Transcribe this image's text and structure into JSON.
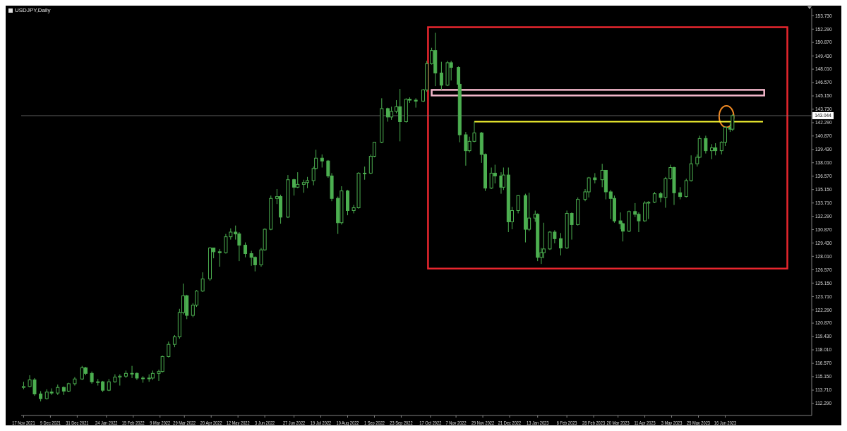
{
  "chart_data": {
    "type": "candlestick",
    "title": "USDJPY,Daily",
    "color": "#4caf50",
    "x": [
      "2021-11-17",
      "2021-11-22",
      "2021-11-26",
      "2021-12-01",
      "2021-12-06",
      "2021-12-10",
      "2021-12-15",
      "2021-12-20",
      "2021-12-24",
      "2021-12-29",
      "2022-01-04",
      "2022-01-07",
      "2022-01-12",
      "2022-01-17",
      "2022-01-21",
      "2022-01-26",
      "2022-01-31",
      "2022-02-04",
      "2022-02-09",
      "2022-02-14",
      "2022-02-18",
      "2022-02-23",
      "2022-02-28",
      "2022-03-03",
      "2022-03-08",
      "2022-03-11",
      "2022-03-16",
      "2022-03-21",
      "2022-03-25",
      "2022-03-28",
      "2022-03-31",
      "2022-04-05",
      "2022-04-08",
      "2022-04-13",
      "2022-04-19",
      "2022-04-22",
      "2022-04-27",
      "2022-05-02",
      "2022-05-06",
      "2022-05-10",
      "2022-05-13",
      "2022-05-18",
      "2022-05-23",
      "2022-05-26",
      "2022-05-31",
      "2022-06-03",
      "2022-06-08",
      "2022-06-13",
      "2022-06-16",
      "2022-06-22",
      "2022-06-27",
      "2022-06-30",
      "2022-07-05",
      "2022-07-08",
      "2022-07-13",
      "2022-07-15",
      "2022-07-20",
      "2022-07-25",
      "2022-07-28",
      "2022-08-02",
      "2022-08-05",
      "2022-08-10",
      "2022-08-15",
      "2022-08-19",
      "2022-08-24",
      "2022-08-29",
      "2022-09-01",
      "2022-09-07",
      "2022-09-12",
      "2022-09-15",
      "2022-09-19",
      "2022-09-22",
      "2022-09-27",
      "2022-09-30",
      "2022-10-05",
      "2022-10-11",
      "2022-10-14",
      "2022-10-18",
      "2022-10-21",
      "2022-10-26",
      "2022-10-31",
      "2022-11-03",
      "2022-11-09",
      "2022-11-10",
      "2022-11-15",
      "2022-11-18",
      "2022-11-22",
      "2022-11-28",
      "2022-12-01",
      "2022-12-06",
      "2022-12-09",
      "2022-12-14",
      "2022-12-16",
      "2022-12-20",
      "2022-12-23",
      "2022-12-28",
      "2023-01-03",
      "2023-01-06",
      "2023-01-11",
      "2023-01-13",
      "2023-01-16",
      "2023-01-18",
      "2023-01-23",
      "2023-01-27",
      "2023-02-01",
      "2023-02-06",
      "2023-02-10",
      "2023-02-15",
      "2023-02-21",
      "2023-02-24",
      "2023-03-01",
      "2023-03-07",
      "2023-03-10",
      "2023-03-14",
      "2023-03-17",
      "2023-03-22",
      "2023-03-24",
      "2023-03-29",
      "2023-04-03",
      "2023-04-06",
      "2023-04-11",
      "2023-04-14",
      "2023-04-19",
      "2023-04-24",
      "2023-04-28",
      "2023-05-02",
      "2023-05-05",
      "2023-05-10",
      "2023-05-15",
      "2023-05-19",
      "2023-05-24",
      "2023-05-26",
      "2023-05-31",
      "2023-06-05",
      "2023-06-08",
      "2023-06-13",
      "2023-06-16",
      "2023-06-20",
      "2023-06-22"
    ],
    "ohlc": [
      [
        114.0,
        114.6,
        113.8,
        114.1
      ],
      [
        114.1,
        115.3,
        114.0,
        114.8
      ],
      [
        114.8,
        115.0,
        113.1,
        113.3
      ],
      [
        113.3,
        113.6,
        112.5,
        112.8
      ],
      [
        112.8,
        113.8,
        112.7,
        113.5
      ],
      [
        113.5,
        113.9,
        113.2,
        113.4
      ],
      [
        113.4,
        114.3,
        113.2,
        114.0
      ],
      [
        114.0,
        114.1,
        113.2,
        113.6
      ],
      [
        113.6,
        114.5,
        113.5,
        114.4
      ],
      [
        114.4,
        115.1,
        114.2,
        114.9
      ],
      [
        114.9,
        116.3,
        114.8,
        116.1
      ],
      [
        116.1,
        116.2,
        115.3,
        115.5
      ],
      [
        115.5,
        115.7,
        114.4,
        114.6
      ],
      [
        114.6,
        114.9,
        114.2,
        114.6
      ],
      [
        114.6,
        114.7,
        113.5,
        113.7
      ],
      [
        113.7,
        114.9,
        113.6,
        114.6
      ],
      [
        114.6,
        115.4,
        114.5,
        115.1
      ],
      [
        115.1,
        115.4,
        114.2,
        115.2
      ],
      [
        115.2,
        115.8,
        115.0,
        115.5
      ],
      [
        115.5,
        116.3,
        115.0,
        115.5
      ],
      [
        115.5,
        115.6,
        114.8,
        115.0
      ],
      [
        115.0,
        115.2,
        114.5,
        115.0
      ],
      [
        115.0,
        115.4,
        114.6,
        115.0
      ],
      [
        115.0,
        115.8,
        114.8,
        115.5
      ],
      [
        115.5,
        115.9,
        114.7,
        115.7
      ],
      [
        115.7,
        117.4,
        115.6,
        117.3
      ],
      [
        117.3,
        118.9,
        117.2,
        118.6
      ],
      [
        118.6,
        119.6,
        118.3,
        119.4
      ],
      [
        119.4,
        122.4,
        119.2,
        122.0
      ],
      [
        122.0,
        125.1,
        121.8,
        123.8
      ],
      [
        123.8,
        123.9,
        121.3,
        121.7
      ],
      [
        121.7,
        123.0,
        121.5,
        122.8
      ],
      [
        122.8,
        124.4,
        122.6,
        124.3
      ],
      [
        124.3,
        126.3,
        124.2,
        125.6
      ],
      [
        125.6,
        129.0,
        125.4,
        128.9
      ],
      [
        128.9,
        128.9,
        127.8,
        128.5
      ],
      [
        128.5,
        128.8,
        126.9,
        128.4
      ],
      [
        128.4,
        130.4,
        128.3,
        130.1
      ],
      [
        130.1,
        131.0,
        129.8,
        130.6
      ],
      [
        130.6,
        131.3,
        129.8,
        130.4
      ],
      [
        130.4,
        130.6,
        127.5,
        129.2
      ],
      [
        129.2,
        129.5,
        127.9,
        128.3
      ],
      [
        128.3,
        128.6,
        127.0,
        127.9
      ],
      [
        127.9,
        128.0,
        126.4,
        127.1
      ],
      [
        127.1,
        128.9,
        126.9,
        128.7
      ],
      [
        128.7,
        131.0,
        128.6,
        130.9
      ],
      [
        130.9,
        134.5,
        130.8,
        134.2
      ],
      [
        134.2,
        135.2,
        133.6,
        134.4
      ],
      [
        134.4,
        134.6,
        131.5,
        132.2
      ],
      [
        132.2,
        136.7,
        132.1,
        136.2
      ],
      [
        136.2,
        136.3,
        134.5,
        135.4
      ],
      [
        135.4,
        137.0,
        135.3,
        135.7
      ],
      [
        135.7,
        136.2,
        134.8,
        135.9
      ],
      [
        135.9,
        136.5,
        135.3,
        136.1
      ],
      [
        136.1,
        137.6,
        135.6,
        137.4
      ],
      [
        137.4,
        139.4,
        137.3,
        138.5
      ],
      [
        138.5,
        138.9,
        137.5,
        138.2
      ],
      [
        138.2,
        138.3,
        136.4,
        136.6
      ],
      [
        136.6,
        136.9,
        133.9,
        134.2
      ],
      [
        134.2,
        134.4,
        130.4,
        131.6
      ],
      [
        131.6,
        135.5,
        131.4,
        135.0
      ],
      [
        135.0,
        135.1,
        132.4,
        132.9
      ],
      [
        132.9,
        133.5,
        132.6,
        133.2
      ],
      [
        133.2,
        137.0,
        133.1,
        136.9
      ],
      [
        136.9,
        137.6,
        136.2,
        136.9
      ],
      [
        136.9,
        138.9,
        136.8,
        138.7
      ],
      [
        138.7,
        140.2,
        138.6,
        140.2
      ],
      [
        140.2,
        144.9,
        140.1,
        143.8
      ],
      [
        143.8,
        143.9,
        142.4,
        142.9
      ],
      [
        142.9,
        144.0,
        142.6,
        143.5
      ],
      [
        143.5,
        144.7,
        143.3,
        144.0
      ],
      [
        144.0,
        145.9,
        140.3,
        142.4
      ],
      [
        142.4,
        144.9,
        142.3,
        144.8
      ],
      [
        144.8,
        145.0,
        144.4,
        144.7
      ],
      [
        144.7,
        144.9,
        143.9,
        144.6
      ],
      [
        144.6,
        145.9,
        144.5,
        145.8
      ],
      [
        145.8,
        148.9,
        145.6,
        148.6
      ],
      [
        148.6,
        150.3,
        148.5,
        150.0
      ],
      [
        150.0,
        151.9,
        146.2,
        147.6
      ],
      [
        147.6,
        148.8,
        145.8,
        146.3
      ],
      [
        146.3,
        148.9,
        146.2,
        148.7
      ],
      [
        148.7,
        148.9,
        146.8,
        148.2
      ],
      [
        148.2,
        148.3,
        146.1,
        146.4
      ],
      [
        146.4,
        146.6,
        140.2,
        141.0
      ],
      [
        141.0,
        141.3,
        137.7,
        139.3
      ],
      [
        139.3,
        140.8,
        139.1,
        140.3
      ],
      [
        140.3,
        142.4,
        140.2,
        141.2
      ],
      [
        141.2,
        141.3,
        138.0,
        138.9
      ],
      [
        138.9,
        139.0,
        135.0,
        135.3
      ],
      [
        135.3,
        137.5,
        135.2,
        136.9
      ],
      [
        136.9,
        137.8,
        135.8,
        136.6
      ],
      [
        136.6,
        137.0,
        134.7,
        135.4
      ],
      [
        135.4,
        137.5,
        135.1,
        136.7
      ],
      [
        136.7,
        137.5,
        130.6,
        131.7
      ],
      [
        131.7,
        133.3,
        130.9,
        132.9
      ],
      [
        132.9,
        134.5,
        132.6,
        134.5
      ],
      [
        134.5,
        134.7,
        129.5,
        130.9
      ],
      [
        130.9,
        134.8,
        130.7,
        132.1
      ],
      [
        132.1,
        132.9,
        131.7,
        132.5
      ],
      [
        132.5,
        132.6,
        127.5,
        127.9
      ],
      [
        127.9,
        128.9,
        127.2,
        128.4
      ],
      [
        128.4,
        131.6,
        127.8,
        128.8
      ],
      [
        128.8,
        130.7,
        128.7,
        130.6
      ],
      [
        130.6,
        130.8,
        129.4,
        129.9
      ],
      [
        129.9,
        130.5,
        128.1,
        128.9
      ],
      [
        128.9,
        132.9,
        128.8,
        132.6
      ],
      [
        132.6,
        132.7,
        129.8,
        131.4
      ],
      [
        131.4,
        134.3,
        131.3,
        134.1
      ],
      [
        134.1,
        135.2,
        133.9,
        134.9
      ],
      [
        134.9,
        136.5,
        134.3,
        136.4
      ],
      [
        136.4,
        136.9,
        135.8,
        136.2
      ],
      [
        136.2,
        137.9,
        135.4,
        137.2
      ],
      [
        137.2,
        137.2,
        134.1,
        134.9
      ],
      [
        134.9,
        135.1,
        132.0,
        134.2
      ],
      [
        134.2,
        134.5,
        131.6,
        131.8
      ],
      [
        131.8,
        132.7,
        130.9,
        131.5
      ],
      [
        131.5,
        131.6,
        129.6,
        130.7
      ],
      [
        130.7,
        132.9,
        130.6,
        132.8
      ],
      [
        132.8,
        133.7,
        132.2,
        132.5
      ],
      [
        132.5,
        132.7,
        130.6,
        131.8
      ],
      [
        131.8,
        133.9,
        131.7,
        133.7
      ],
      [
        133.7,
        133.9,
        132.0,
        133.8
      ],
      [
        133.8,
        134.9,
        133.7,
        134.7
      ],
      [
        134.7,
        134.9,
        133.8,
        134.3
      ],
      [
        134.3,
        136.5,
        133.2,
        136.3
      ],
      [
        136.3,
        137.8,
        136.2,
        137.5
      ],
      [
        137.5,
        137.6,
        133.5,
        134.8
      ],
      [
        134.8,
        135.4,
        134.1,
        134.4
      ],
      [
        134.4,
        136.3,
        134.3,
        136.1
      ],
      [
        136.1,
        138.8,
        136.0,
        137.9
      ],
      [
        137.9,
        138.9,
        137.6,
        138.6
      ],
      [
        138.6,
        140.9,
        138.5,
        140.6
      ],
      [
        140.6,
        140.9,
        139.0,
        139.3
      ],
      [
        139.3,
        140.0,
        138.4,
        139.6
      ],
      [
        139.6,
        140.1,
        138.8,
        139.3
      ],
      [
        139.3,
        140.3,
        138.9,
        140.2
      ],
      [
        140.2,
        141.9,
        139.8,
        141.8
      ],
      [
        141.8,
        142.3,
        141.3,
        141.6
      ],
      [
        141.6,
        143.2,
        141.4,
        143.04
      ]
    ],
    "series": [
      {
        "type": "line",
        "color": "#ffff33",
        "x": [
          "2022-11-22",
          "2023-07-17"
        ],
        "values": [
          142.4,
          142.4
        ]
      }
    ],
    "ref_lines": [
      {
        "axis": "y",
        "value": 143.044,
        "label": "143.044",
        "color": "#808080"
      }
    ],
    "xlim": [
      "2021-11-15",
      "2023-08-26"
    ],
    "xticks": [
      {
        "value": "2021-11-17",
        "label": "17 Nov 2021"
      },
      {
        "value": "2021-12-09",
        "label": "9 Dec 2021"
      },
      {
        "value": "2021-12-31",
        "label": "31 Dec 2021"
      },
      {
        "value": "2022-01-24",
        "label": "24 Jan 2022"
      },
      {
        "value": "2022-02-15",
        "label": "15 Feb 2022"
      },
      {
        "value": "2022-03-09",
        "label": "9 Mar 2022"
      },
      {
        "value": "2022-03-29",
        "label": "29 Mar 2022"
      },
      {
        "value": "2022-04-20",
        "label": "20 Apr 2022"
      },
      {
        "value": "2022-05-12",
        "label": "12 May 2022"
      },
      {
        "value": "2022-06-03",
        "label": "3 Jun 2022"
      },
      {
        "value": "2022-06-27",
        "label": "27 Jun 2022"
      },
      {
        "value": "2022-07-19",
        "label": "19 Jul 2022"
      },
      {
        "value": "2022-08-10",
        "label": "10 Aug 2022"
      },
      {
        "value": "2022-09-01",
        "label": "1 Sep 2022"
      },
      {
        "value": "2022-09-23",
        "label": "23 Sep 2022"
      },
      {
        "value": "2022-10-17",
        "label": "17 Oct 2022"
      },
      {
        "value": "2022-11-07",
        "label": "7 Nov 2022"
      },
      {
        "value": "2022-11-29",
        "label": "29 Nov 2022"
      },
      {
        "value": "2022-12-21",
        "label": "21 Dec 2022"
      },
      {
        "value": "2023-01-13",
        "label": "13 Jan 2023"
      },
      {
        "value": "2023-02-06",
        "label": "6 Feb 2023"
      },
      {
        "value": "2023-02-28",
        "label": "28 Feb 2023"
      },
      {
        "value": "2023-03-20",
        "label": "20 Mar 2023"
      },
      {
        "value": "2023-04-11",
        "label": "11 Apr 2023"
      },
      {
        "value": "2023-05-03",
        "label": "3 May 2023"
      },
      {
        "value": "2023-05-25",
        "label": "25 May 2023"
      },
      {
        "value": "2023-06-16",
        "label": "16 Jun 2023"
      }
    ],
    "ylim": [
      111.0,
      154.5
    ],
    "yticks": [
      {
        "value": 112.29,
        "label": "112.290"
      },
      {
        "value": 113.71,
        "label": "113.710"
      },
      {
        "value": 115.15,
        "label": "115.150"
      },
      {
        "value": 116.57,
        "label": "116.570"
      },
      {
        "value": 118.01,
        "label": "118.010"
      },
      {
        "value": 119.43,
        "label": "119.430"
      },
      {
        "value": 120.87,
        "label": "120.870"
      },
      {
        "value": 122.29,
        "label": "122.290"
      },
      {
        "value": 123.71,
        "label": "123.710"
      },
      {
        "value": 125.15,
        "label": "125.150"
      },
      {
        "value": 126.57,
        "label": "126.570"
      },
      {
        "value": 128.01,
        "label": "128.010"
      },
      {
        "value": 129.43,
        "label": "129.430"
      },
      {
        "value": 130.87,
        "label": "130.870"
      },
      {
        "value": 132.29,
        "label": "132.290"
      },
      {
        "value": 133.71,
        "label": "133.710"
      },
      {
        "value": 135.15,
        "label": "135.150"
      },
      {
        "value": 136.57,
        "label": "136.570"
      },
      {
        "value": 138.01,
        "label": "138.010"
      },
      {
        "value": 139.43,
        "label": "139.430"
      },
      {
        "value": 140.87,
        "label": "140.870"
      },
      {
        "value": 142.29,
        "label": "142.290"
      },
      {
        "value": 143.73,
        "label": "143.730"
      },
      {
        "value": 145.15,
        "label": "145.150"
      },
      {
        "value": 146.57,
        "label": "146.570"
      },
      {
        "value": 148.01,
        "label": "148.010"
      },
      {
        "value": 149.43,
        "label": "149.430"
      },
      {
        "value": 150.87,
        "label": "150.870"
      },
      {
        "value": 152.29,
        "label": "152.290"
      },
      {
        "value": 153.73,
        "label": "153.730"
      }
    ]
  }
}
